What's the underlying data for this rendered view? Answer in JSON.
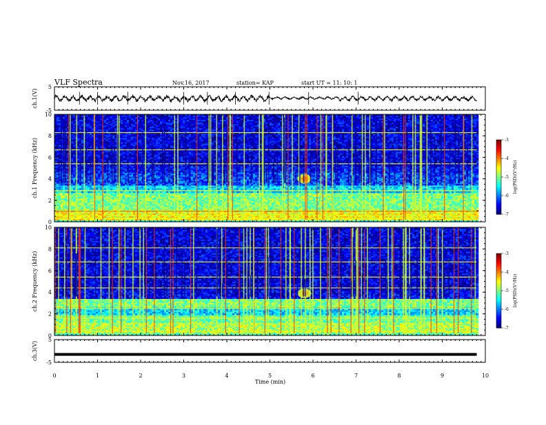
{
  "header": {
    "title": "VLF Spectra",
    "date": "Nov.16, 2017",
    "station": "station= KAP",
    "start": "start  UT =   11: 10: 1"
  },
  "chart_data": [
    {
      "type": "line",
      "panel": "ch1-waveform",
      "ylabel": "ch.1(V)",
      "ylim": [
        -5,
        5
      ],
      "yticks": [
        "5",
        "-5"
      ],
      "x_range": [
        0,
        10
      ],
      "data_end_min": 9.8,
      "style": "noisy-waveform",
      "segments": [
        {
          "x": [
            0,
            4.98
          ],
          "mean": 0.0,
          "amplitude": 1.6
        },
        {
          "x": [
            4.98,
            6.6
          ],
          "mean": 0.2,
          "amplitude": 0.7
        },
        {
          "x": [
            6.6,
            9.8
          ],
          "mean": 0.0,
          "amplitude": 1.2
        }
      ]
    },
    {
      "type": "heatmap",
      "panel": "ch1-spectrogram",
      "ylabel": "ch.1 Frequency (kHz)",
      "ylim": [
        0,
        10
      ],
      "yticks": [
        "0",
        "2",
        "4",
        "6",
        "8",
        "10"
      ],
      "x_range": [
        0,
        10
      ],
      "data_end_min": 9.8,
      "colorbar": {
        "label": "log(PSD)(V²/Hz)",
        "range": [
          -7,
          -3
        ],
        "ticks": [
          "-3",
          "-4",
          "-5",
          "-6",
          "-7"
        ]
      },
      "bands": [
        {
          "f": [
            0,
            0.15
          ],
          "level": 0.4
        },
        {
          "f": [
            0.15,
            1.0
          ],
          "level": 0.62
        },
        {
          "f": [
            1.0,
            1.1
          ],
          "level": 0.92
        },
        {
          "f": [
            1.1,
            2.7
          ],
          "level": 0.5
        },
        {
          "f": [
            2.7,
            3.4
          ],
          "level": 0.34
        },
        {
          "f": [
            3.4,
            4.6
          ],
          "level": 0.2
        },
        {
          "f": [
            4.6,
            5.2
          ],
          "level": 0.14
        },
        {
          "f": [
            5.2,
            10.0
          ],
          "level": 0.1
        }
      ],
      "tones_khz": [
        0.3,
        0.55,
        1.05,
        2.9,
        5.4,
        6.7,
        8.3
      ],
      "emissions": [
        {
          "t": 5.8,
          "f": 4.0,
          "level": 0.62
        }
      ]
    },
    {
      "type": "heatmap",
      "panel": "ch2-spectrogram",
      "ylabel": "ch.2 Frequency (kHz)",
      "ylim": [
        0,
        10
      ],
      "yticks": [
        "0",
        "2",
        "4",
        "6",
        "8",
        "10"
      ],
      "x_range": [
        0,
        10
      ],
      "data_end_min": 9.8,
      "colorbar": {
        "label": "log(PSD)(V²/Hz)",
        "range": [
          -7,
          -3
        ],
        "ticks": [
          "-3",
          "-4",
          "-5",
          "-6",
          "-7"
        ]
      },
      "bands": [
        {
          "f": [
            0,
            0.2
          ],
          "level": 0.45
        },
        {
          "f": [
            0.2,
            1.2
          ],
          "level": 0.55
        },
        {
          "f": [
            1.2,
            1.9
          ],
          "level": 0.48
        },
        {
          "f": [
            1.9,
            2.6
          ],
          "level": 0.34
        },
        {
          "f": [
            2.6,
            3.4
          ],
          "level": 0.5
        },
        {
          "f": [
            3.4,
            4.2
          ],
          "level": 0.12
        },
        {
          "f": [
            4.2,
            10.0
          ],
          "level": 0.1
        }
      ],
      "tones_khz": [
        0.4,
        1.6,
        2.5,
        4.4,
        5.4,
        6.8,
        8.1
      ],
      "emissions": [
        {
          "t": 5.8,
          "f": 3.9,
          "level": 0.6
        }
      ]
    },
    {
      "type": "line",
      "panel": "ch3-waveform",
      "ylabel": "ch.3(V)",
      "ylim": [
        -5,
        5
      ],
      "yticks": [
        "5",
        "-5"
      ],
      "x_range": [
        0,
        10
      ],
      "data_end_min": 9.8,
      "style": "flat",
      "segments": [
        {
          "x": [
            0,
            9.8
          ],
          "mean": -1.5,
          "amplitude": 0.0
        }
      ]
    }
  ],
  "x_axis": {
    "label": "Time  (min)",
    "ticks": [
      "0",
      "1",
      "2",
      "3",
      "4",
      "5",
      "6",
      "7",
      "8",
      "9",
      "10"
    ]
  }
}
